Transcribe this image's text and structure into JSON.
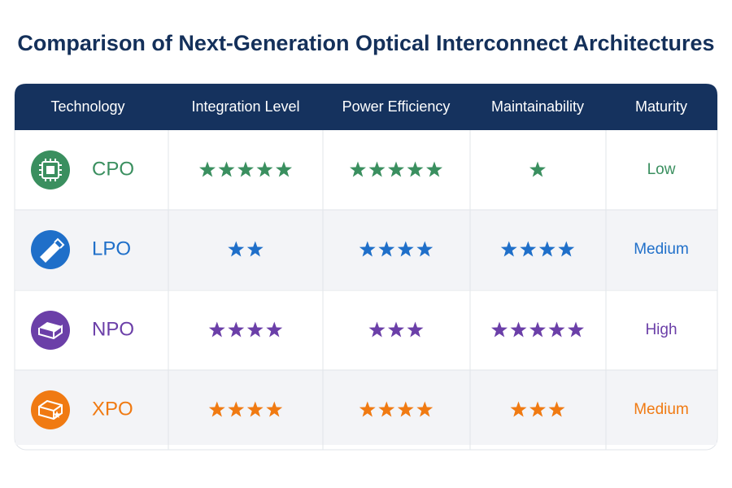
{
  "title": "Comparison of Next-Generation Optical Interconnect Architectures",
  "table": {
    "headers": [
      "Technology",
      "Integration Level",
      "Power Efficiency",
      "Maintainability",
      "Maturity"
    ],
    "rows": [
      {
        "technology": "CPO",
        "color": "#3a8f5f",
        "ratings": [
          5,
          5,
          1
        ],
        "maturity": "Low"
      },
      {
        "technology": "LPO",
        "color": "#1f6fc9",
        "ratings": [
          2,
          4,
          4
        ],
        "maturity": "Medium"
      },
      {
        "technology": "NPO",
        "color": "#6b3fa8",
        "ratings": [
          4,
          3,
          5
        ],
        "maturity": "High"
      },
      {
        "technology": "XPO",
        "color": "#f07a12",
        "ratings": [
          4,
          4,
          3
        ],
        "maturity": "Medium"
      }
    ]
  }
}
